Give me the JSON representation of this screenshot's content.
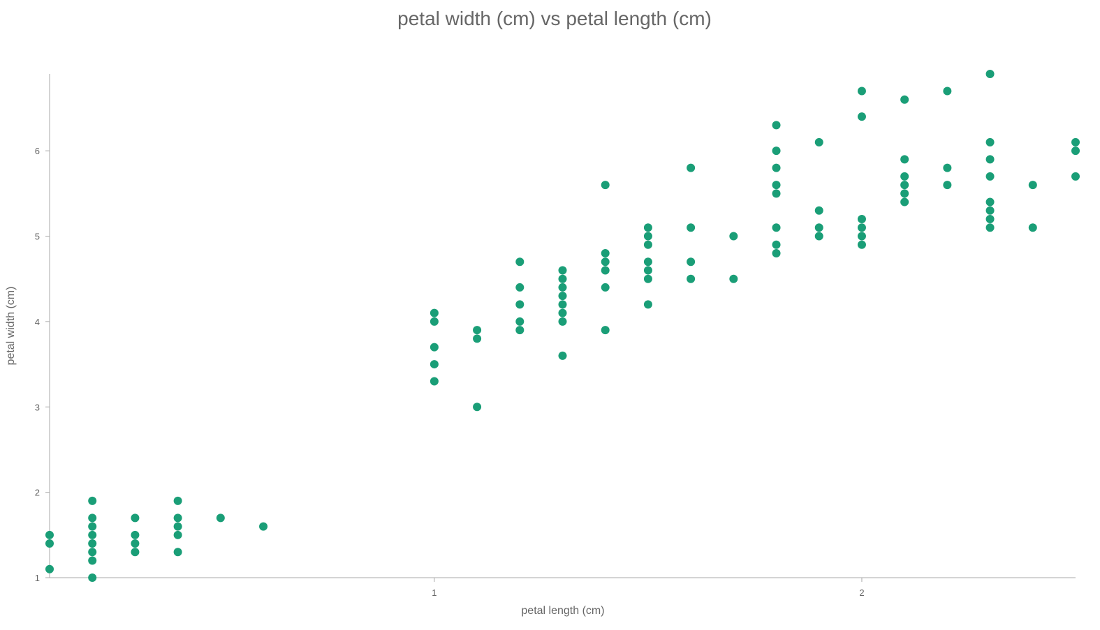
{
  "chart_data": {
    "type": "scatter",
    "title": "petal width (cm) vs petal length (cm)",
    "xlabel": "petal length (cm)",
    "ylabel": "petal width (cm)",
    "xlim": [
      0.1,
      2.5
    ],
    "ylim": [
      1,
      6.9
    ],
    "xticks": [
      1,
      2
    ],
    "yticks": [
      1,
      2,
      3,
      4,
      5,
      6
    ],
    "grid": false,
    "color": "#1a9e77",
    "points": [
      [
        0.1,
        1.5
      ],
      [
        0.1,
        1.4
      ],
      [
        0.1,
        1.1
      ],
      [
        0.2,
        1.9
      ],
      [
        0.2,
        1.7
      ],
      [
        0.2,
        1.6
      ],
      [
        0.2,
        1.5
      ],
      [
        0.2,
        1.4
      ],
      [
        0.2,
        1.3
      ],
      [
        0.2,
        1.2
      ],
      [
        0.2,
        1.0
      ],
      [
        0.3,
        1.7
      ],
      [
        0.3,
        1.5
      ],
      [
        0.3,
        1.4
      ],
      [
        0.3,
        1.3
      ],
      [
        0.4,
        1.9
      ],
      [
        0.4,
        1.7
      ],
      [
        0.4,
        1.6
      ],
      [
        0.4,
        1.5
      ],
      [
        0.4,
        1.3
      ],
      [
        0.5,
        1.7
      ],
      [
        0.6,
        1.6
      ],
      [
        1.0,
        4.1
      ],
      [
        1.0,
        4.0
      ],
      [
        1.0,
        3.7
      ],
      [
        1.0,
        3.5
      ],
      [
        1.0,
        3.3
      ],
      [
        1.1,
        3.9
      ],
      [
        1.1,
        3.8
      ],
      [
        1.1,
        3.0
      ],
      [
        1.2,
        4.7
      ],
      [
        1.2,
        4.4
      ],
      [
        1.2,
        4.2
      ],
      [
        1.2,
        4.0
      ],
      [
        1.2,
        3.9
      ],
      [
        1.3,
        4.6
      ],
      [
        1.3,
        4.5
      ],
      [
        1.3,
        4.4
      ],
      [
        1.3,
        4.3
      ],
      [
        1.3,
        4.2
      ],
      [
        1.3,
        4.1
      ],
      [
        1.3,
        4.0
      ],
      [
        1.3,
        3.6
      ],
      [
        1.4,
        5.6
      ],
      [
        1.4,
        4.8
      ],
      [
        1.4,
        4.7
      ],
      [
        1.4,
        4.6
      ],
      [
        1.4,
        4.4
      ],
      [
        1.4,
        3.9
      ],
      [
        1.5,
        5.1
      ],
      [
        1.5,
        5.0
      ],
      [
        1.5,
        4.9
      ],
      [
        1.5,
        4.7
      ],
      [
        1.5,
        4.6
      ],
      [
        1.5,
        4.5
      ],
      [
        1.5,
        4.2
      ],
      [
        1.6,
        5.8
      ],
      [
        1.6,
        5.1
      ],
      [
        1.6,
        4.7
      ],
      [
        1.6,
        4.5
      ],
      [
        1.7,
        5.0
      ],
      [
        1.7,
        4.5
      ],
      [
        1.8,
        6.3
      ],
      [
        1.8,
        6.0
      ],
      [
        1.8,
        5.8
      ],
      [
        1.8,
        5.6
      ],
      [
        1.8,
        5.5
      ],
      [
        1.8,
        5.1
      ],
      [
        1.8,
        4.9
      ],
      [
        1.8,
        4.8
      ],
      [
        1.9,
        6.1
      ],
      [
        1.9,
        5.3
      ],
      [
        1.9,
        5.1
      ],
      [
        1.9,
        5.0
      ],
      [
        2.0,
        6.7
      ],
      [
        2.0,
        6.4
      ],
      [
        2.0,
        5.2
      ],
      [
        2.0,
        5.1
      ],
      [
        2.0,
        5.0
      ],
      [
        2.0,
        4.9
      ],
      [
        2.1,
        6.6
      ],
      [
        2.1,
        5.9
      ],
      [
        2.1,
        5.7
      ],
      [
        2.1,
        5.6
      ],
      [
        2.1,
        5.5
      ],
      [
        2.1,
        5.4
      ],
      [
        2.2,
        6.7
      ],
      [
        2.2,
        5.8
      ],
      [
        2.2,
        5.6
      ],
      [
        2.3,
        6.9
      ],
      [
        2.3,
        6.1
      ],
      [
        2.3,
        5.9
      ],
      [
        2.3,
        5.7
      ],
      [
        2.3,
        5.4
      ],
      [
        2.3,
        5.3
      ],
      [
        2.3,
        5.2
      ],
      [
        2.3,
        5.1
      ],
      [
        2.4,
        5.6
      ],
      [
        2.4,
        5.1
      ],
      [
        2.5,
        6.1
      ],
      [
        2.5,
        6.0
      ],
      [
        2.5,
        5.7
      ]
    ]
  }
}
